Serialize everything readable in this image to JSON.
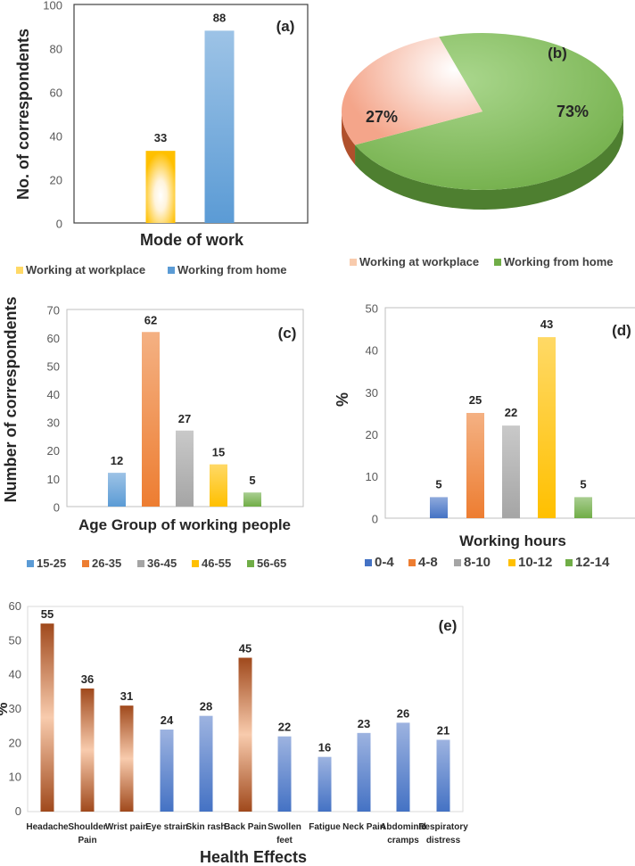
{
  "chart_data": [
    {
      "id": "a",
      "type": "bar",
      "panel_label": "(a)",
      "xlabel": "Mode of work",
      "ylabel": "No. of correspondents",
      "ylim": [
        0,
        100
      ],
      "yticks": [
        0,
        20,
        40,
        60,
        80,
        100
      ],
      "categories": [
        "Working at workplace",
        "Working from home"
      ],
      "values": [
        33,
        88
      ],
      "colors": [
        "#ffc000",
        "#5b9bd5"
      ],
      "legend": [
        "Working at workplace",
        "Working from home"
      ],
      "legend_position": "bottom"
    },
    {
      "id": "b",
      "type": "pie",
      "panel_label": "(b)",
      "categories": [
        "Working at workplace",
        "Working from home"
      ],
      "values": [
        27,
        73
      ],
      "labels": [
        "27%",
        "73%"
      ],
      "colors": [
        "#f4a58a",
        "#8cc46a"
      ],
      "legend": [
        "Working at workplace",
        "Working from home"
      ],
      "legend_position": "bottom"
    },
    {
      "id": "c",
      "type": "bar",
      "panel_label": "(c)",
      "xlabel": "Age Group of working people",
      "ylabel": "Number of correspondents",
      "ylim": [
        0,
        70
      ],
      "yticks": [
        0,
        10,
        20,
        30,
        40,
        50,
        60,
        70
      ],
      "categories": [
        "15-25",
        "26-35",
        "36-45",
        "46-55",
        "56-65"
      ],
      "values": [
        12,
        62,
        27,
        15,
        5
      ],
      "colors": [
        "#5b9bd5",
        "#ed7d31",
        "#a5a5a5",
        "#ffc000",
        "#70ad47"
      ],
      "legend_position": "bottom"
    },
    {
      "id": "d",
      "type": "bar",
      "panel_label": "(d)",
      "xlabel": "Working hours",
      "ylabel": "%",
      "ylim": [
        0,
        50
      ],
      "yticks": [
        0,
        10,
        20,
        30,
        40,
        50
      ],
      "categories": [
        "0-4",
        "4-8",
        "8-10",
        "10-12",
        "12-14"
      ],
      "values": [
        5,
        25,
        22,
        43,
        5
      ],
      "colors": [
        "#4472c4",
        "#ed7d31",
        "#a5a5a5",
        "#ffc000",
        "#70ad47"
      ],
      "legend_position": "bottom"
    },
    {
      "id": "e",
      "type": "bar",
      "panel_label": "(e)",
      "xlabel": "Health Effects",
      "ylabel": "%",
      "ylim": [
        0,
        60
      ],
      "yticks": [
        0,
        10,
        20,
        30,
        40,
        50,
        60
      ],
      "categories": [
        [
          "Headache"
        ],
        [
          "Shoulder",
          "Pain"
        ],
        [
          "Wrist pain"
        ],
        [
          "Eye strain"
        ],
        [
          "Skin rash"
        ],
        [
          "Back Pain"
        ],
        [
          "Swollen",
          "feet"
        ],
        [
          "Fatigue"
        ],
        [
          "Neck Pain"
        ],
        [
          "Abdominal",
          "cramps"
        ],
        [
          "Respiratory",
          "distress"
        ]
      ],
      "values": [
        55,
        36,
        31,
        24,
        28,
        45,
        22,
        16,
        23,
        26,
        21
      ],
      "styles": [
        "brown",
        "brown",
        "brown",
        "blue",
        "blue",
        "brown",
        "blue",
        "blue",
        "blue",
        "blue",
        "blue"
      ]
    }
  ]
}
